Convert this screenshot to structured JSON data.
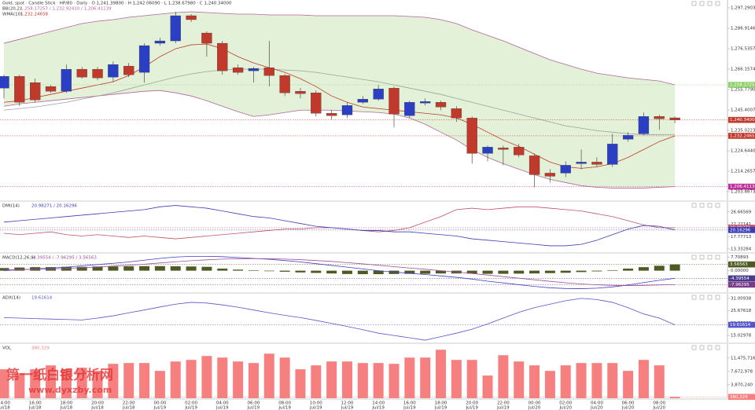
{
  "chart_data": [
    {
      "type": "candlestick",
      "title": "Gold, spot · Candle Stick · HP/80 · Daily · O 1,241.39800 · H 1,242.06090 · L 1,238.67980 · C 1,240.34000",
      "categories": [
        "14:00",
        null,
        "16:00",
        null,
        "18:00",
        null,
        "20:00",
        null,
        "22:00",
        null,
        "00:00",
        null,
        "02:00",
        null,
        "04:00",
        null,
        "06:00",
        null,
        "08:00",
        null,
        "10:00",
        null,
        "12:00",
        null,
        "14:00",
        null,
        "16:00",
        null,
        "18:00",
        null,
        "20:00",
        null,
        "22:00",
        null,
        "00:00",
        null,
        "02:00",
        null,
        "04:00",
        null,
        "06:00",
        null,
        "08:00",
        null
      ],
      "dates": [
        "Jul/18",
        null,
        "Jul/18",
        null,
        "Jul/18",
        null,
        "Jul/18",
        null,
        "Jul/18",
        null,
        "Jul/19",
        null,
        "Jul/19",
        null,
        "Jul/19",
        null,
        "Jul/19",
        null,
        "Jul/19",
        null,
        "Jul/19",
        null,
        "Jul/19",
        null,
        "Jul/19",
        null,
        "Jul/19",
        null,
        "Jul/19",
        null,
        "Jul/19",
        null,
        "Jul/19",
        null,
        "Jul/20",
        null,
        "Jul/20",
        null,
        "Jul/20",
        null,
        "Jul/20",
        null,
        "Jul/20",
        null
      ],
      "open": [
        1256.5,
        1262.5,
        1259.3,
        1257.3,
        1254.9,
        1266.1,
        1266.1,
        1262.1,
        1267.7,
        1264.5,
        1279.3,
        1280.5,
        1293.3,
        1284.5,
        1279.3,
        1266.9,
        1265.3,
        1266.9,
        1262.9,
        1254.9,
        1254.1,
        1243.7,
        1242.9,
        1249.3,
        1250.9,
        1256.5,
        1242.5,
        1248.9,
        1249.3,
        1246.1,
        1241.3,
        1223.3,
        1226.1,
        1226.5,
        1222.1,
        1213.3,
        1213.3,
        1218.1,
        1218.9,
        1217.7,
        1230.5,
        1233.3,
        1242.1,
        1241.398
      ],
      "high": [
        1263.3,
        1263.3,
        1261.3,
        1258.1,
        1268.5,
        1267.3,
        1267.3,
        1270.1,
        1269.3,
        1279.3,
        1282.1,
        1295.3,
        1294.1,
        1285.3,
        1280.5,
        1268.5,
        1267.3,
        1280.5,
        1263.7,
        1256.5,
        1255.3,
        1245.3,
        1249.3,
        1252.5,
        1258.1,
        1257.3,
        1250.1,
        1251.3,
        1250.1,
        1247.3,
        1242.1,
        1227.3,
        1227.3,
        1228.1,
        1223.3,
        1215.3,
        1219.3,
        1225.3,
        1221.3,
        1233.3,
        1234.1,
        1244.1,
        1242.9,
        1242.0609
      ],
      "low": [
        1251.3,
        1247.3,
        1249.3,
        1254.1,
        1254.1,
        1261.3,
        1260.5,
        1259.7,
        1262.1,
        1259.3,
        1278.1,
        1279.3,
        1290.1,
        1272.5,
        1263.3,
        1263.3,
        1259.3,
        1257.3,
        1252.5,
        1251.3,
        1242.1,
        1240.5,
        1241.3,
        1248.5,
        1250.1,
        1236.5,
        1241.3,
        1247.7,
        1245.3,
        1239.3,
        1218.1,
        1219.3,
        1217.3,
        1221.3,
        1206.1,
        1208.5,
        1211.3,
        1215.3,
        1216.5,
        1216.5,
        1229.3,
        1232.5,
        1235.3,
        1238.6798
      ],
      "close": [
        1262.5,
        1249.3,
        1250.5,
        1254.9,
        1266.1,
        1262.1,
        1261.7,
        1268.5,
        1263.3,
        1278.1,
        1280.5,
        1293.3,
        1291.3,
        1279.3,
        1265.3,
        1264.5,
        1266.5,
        1262.9,
        1254.1,
        1253.7,
        1243.7,
        1242.5,
        1247.7,
        1250.9,
        1256.1,
        1243.3,
        1249.3,
        1249.7,
        1246.9,
        1241.3,
        1223.3,
        1226.5,
        1225.3,
        1222.5,
        1212.5,
        1211.7,
        1217.3,
        1218.9,
        1217.7,
        1228.1,
        1232.5,
        1242.1,
        1240.9,
        1240.34
      ],
      "up_color": "#2b3fc4",
      "down_color": "#c0392b",
      "bands": {
        "label": "BB(20,2)",
        "values_text": "1,258.17257 / 1,232.92410 / 1,206.41139",
        "color": "#b5649a",
        "middle_color": "#9aa39a",
        "fill": "#e3f1d9",
        "upper": [
          1279.3,
          1281.3,
          1283.3,
          1285.3,
          1287.3,
          1289.3,
          1290.5,
          1291.3,
          1292.5,
          1293.3,
          1294.1,
          1294.9,
          1295.3,
          1294.9,
          1294.5,
          1294.1,
          1294.1,
          1293.7,
          1293.7,
          1293.7,
          1293.3,
          1293.3,
          1293.3,
          1293.3,
          1293.3,
          1293.3,
          1292.9,
          1292.5,
          1291.3,
          1289.3,
          1286.1,
          1283.3,
          1280.5,
          1277.3,
          1274.1,
          1270.9,
          1268.5,
          1266.1,
          1264.1,
          1262.9,
          1261.7,
          1260.9,
          1260.1,
          1258.17257
        ],
        "middle": [
          1245.3,
          1246.1,
          1246.9,
          1248.1,
          1249.3,
          1250.9,
          1252.5,
          1254.1,
          1256.1,
          1258.1,
          1260.1,
          1262.1,
          1263.7,
          1264.9,
          1265.7,
          1266.1,
          1266.1,
          1266.1,
          1265.7,
          1265.3,
          1264.5,
          1263.3,
          1262.1,
          1260.9,
          1259.7,
          1258.1,
          1256.5,
          1254.9,
          1253.3,
          1251.3,
          1249.3,
          1247.3,
          1245.3,
          1243.3,
          1241.3,
          1239.3,
          1237.3,
          1236.1,
          1234.9,
          1234.1,
          1233.3,
          1232.9,
          1232.9,
          1232.9241
        ],
        "lower": [
          1247.3,
          1248.5,
          1249.3,
          1250.1,
          1250.9,
          1251.7,
          1252.5,
          1253.3,
          1254.1,
          1254.9,
          1255.3,
          1254.1,
          1252.5,
          1250.1,
          1247.3,
          1244.5,
          1242.1,
          1242.9,
          1244.1,
          1245.3,
          1245.3,
          1245.3,
          1244.9,
          1244.5,
          1244.1,
          1243.3,
          1241.3,
          1238.1,
          1234.1,
          1230.1,
          1225.3,
          1221.3,
          1218.1,
          1215.3,
          1212.5,
          1210.1,
          1208.5,
          1206.9,
          1206.1,
          1205.7,
          1205.7,
          1205.7,
          1206.1,
          1206.41139
        ]
      },
      "ma": {
        "label": "WMA(10)",
        "values_text": "1,232.24658",
        "color": "#c0392b",
        "values": [
          1249.3,
          1250.1,
          1251.7,
          1253.3,
          1254.9,
          1256.5,
          1258.1,
          1259.7,
          1262.9,
          1267.3,
          1272.5,
          1276.5,
          1278.5,
          1278.9,
          1276.5,
          1272.5,
          1269.3,
          1266.9,
          1264.5,
          1261.3,
          1257.3,
          1252.5,
          1249.3,
          1246.9,
          1246.1,
          1245.3,
          1244.5,
          1243.7,
          1242.9,
          1241.3,
          1238.1,
          1234.1,
          1230.1,
          1226.9,
          1222.9,
          1218.9,
          1216.5,
          1215.7,
          1216.5,
          1218.1,
          1221.3,
          1225.3,
          1229.3,
          1232.24658
        ]
      },
      "ylim": [
        1199.49,
        1301.28
      ],
      "yticks": [
        {
          "value": 1297.29032,
          "label": "1,297.29032"
        },
        {
          "value": 1286.91468,
          "label": "1,286.91468"
        },
        {
          "value": 1276.53574,
          "label": "1,276.53574"
        },
        {
          "value": 1266.15748,
          "label": "1,266.15748"
        },
        {
          "value": 1255.77906,
          "label": "1,255.77906"
        },
        {
          "value": 1245.40072,
          "label": "1,245.40072"
        },
        {
          "value": 1235.02238,
          "label": "1,235.02238"
        },
        {
          "value": 1224.64404,
          "label": "1,224.64404"
        },
        {
          "value": 1214.26571,
          "label": "1,214.26571"
        },
        {
          "value": 1203.88737,
          "label": "1,203.88737"
        }
      ],
      "tags": [
        {
          "value": 1258.17257,
          "label": "1,258.17257",
          "color": "#8fd16a"
        },
        {
          "value": 1240.34,
          "label": "1,240.34000",
          "color": "#c0392b"
        },
        {
          "value": 1232.24658,
          "label": "1,232.24658",
          "color": "#c0392b"
        },
        {
          "value": 1206.41139,
          "label": "1,206.41139",
          "color": "#c02e9b"
        }
      ]
    },
    {
      "type": "line",
      "label": "DMI(14)",
      "values_text": "20.98271 / 20.16296",
      "series": [
        {
          "color": "#c0506a",
          "values": [
            19,
            18.5,
            19,
            19.5,
            18.5,
            18,
            18.5,
            18,
            17.5,
            18,
            17.5,
            17,
            17.5,
            18,
            18.5,
            19,
            19.5,
            20,
            20.5,
            20.5,
            21,
            21,
            20.5,
            20,
            19.5,
            20,
            21,
            23,
            25,
            27.5,
            28,
            27.5,
            28,
            28.5,
            28.5,
            28,
            27.5,
            27,
            26,
            25,
            23.5,
            22,
            21,
            20.98271
          ]
        },
        {
          "color": "#3b3bb8",
          "values": [
            23,
            23.5,
            24,
            24.5,
            25,
            25.5,
            26,
            26.5,
            27,
            27.5,
            28.5,
            29,
            28.5,
            28,
            27,
            26,
            25,
            24.5,
            23.5,
            22.5,
            21.5,
            21,
            20.5,
            20,
            20,
            19.5,
            19.5,
            19,
            18.5,
            18,
            17,
            16.5,
            16,
            15.5,
            15,
            14.5,
            14.5,
            15,
            16.5,
            18.5,
            20.5,
            21.8,
            21.5,
            20.16296
          ]
        }
      ],
      "ylim": [
        12.22,
        30.28
      ],
      "yticks": [
        13.33284,
        17.77713,
        22.22141,
        26.66569
      ],
      "tags": [
        {
          "value": 20.98271,
          "label": "20.98271",
          "color": "#c0506a"
        },
        {
          "value": 20.16296,
          "label": "20.16296",
          "color": "#3b3bb8"
        }
      ]
    },
    {
      "type": "combo",
      "label": "MACD(12,26,9)",
      "values_text": "-4.39554 / -7.96295 / 3.56563",
      "series": [
        {
          "kind": "bar",
          "color": "#4d5b22",
          "values": [
            1.5,
            1.8,
            2,
            2,
            2.2,
            2.2,
            2.4,
            2.4,
            2.5,
            2.6,
            2.6,
            2.5,
            2.4,
            2.2,
            1.2,
            0.6,
            0.3,
            -0.3,
            -0.6,
            -1,
            -1.3,
            -1.6,
            -1.9,
            -2,
            -2,
            -1.9,
            -1.8,
            -1.8,
            -1.6,
            -1.6,
            -1.7,
            -1.8,
            -1.8,
            -1.7,
            -1.6,
            -1.4,
            -1.2,
            -0.8,
            -0.4,
            0.3,
            1.2,
            2,
            2.8,
            3.56563
          ]
        },
        {
          "kind": "line",
          "color": "#4040c0",
          "values": [
            0,
            0.5,
            1,
            1.5,
            2,
            2.8,
            3.5,
            4.2,
            5,
            6,
            7,
            7.8,
            8.2,
            8.2,
            8,
            7.5,
            7,
            6.5,
            5.8,
            5,
            4,
            3,
            2,
            1,
            0,
            -0.8,
            -1.5,
            -2.2,
            -3,
            -3.8,
            -4.8,
            -6,
            -7,
            -8,
            -9,
            -9.8,
            -10.2,
            -10.3,
            -10,
            -9.3,
            -8.2,
            -6.8,
            -5.5,
            -4.39554
          ]
        },
        {
          "kind": "line",
          "color": "#a0509a",
          "values": [
            0.5,
            0.6,
            0.8,
            1,
            1.3,
            1.7,
            2.1,
            2.6,
            3.1,
            3.7,
            4.4,
            5.1,
            5.7,
            6.2,
            6.6,
            6.8,
            6.9,
            6.8,
            6.6,
            6.3,
            5.8,
            5.3,
            4.6,
            3.9,
            3.1,
            2.3,
            1.5,
            0.8,
            0,
            -0.8,
            -1.6,
            -2.5,
            -3.4,
            -4.3,
            -5.2,
            -6.1,
            -6.9,
            -7.6,
            -8.1,
            -8.4,
            -8.5,
            -8.4,
            -8.2,
            -7.96295
          ]
        }
      ],
      "ylim": [
        -12.3,
        9.7
      ],
      "yticks": [
        7.70893,
        {
          "value": 0,
          "label": "0.00000"
        }
      ],
      "tags": [
        {
          "value": 3.56563,
          "label": "3.56563",
          "color": "#4d5b22"
        },
        {
          "value": -4.39554,
          "label": "-4.39554",
          "color": "#4a3a8a"
        },
        {
          "value": -7.96295,
          "label": "-7.96295",
          "color": "#7a3a8a"
        }
      ]
    },
    {
      "type": "line",
      "label": "ADX(14)",
      "values_text": "19.61614",
      "series": [
        {
          "color": "#5555cc",
          "values": [
            22.7,
            22.5,
            22.3,
            22.1,
            21.9,
            21.7,
            22.5,
            23.5,
            24.8,
            26,
            27.3,
            28.5,
            29.3,
            29,
            28.2,
            27.2,
            26,
            24.8,
            23.7,
            22.7,
            21.5,
            20.2,
            18.9,
            17.5,
            16,
            15,
            14,
            13,
            14.5,
            16,
            17.7,
            20,
            22.5,
            25,
            27,
            28.5,
            30,
            31,
            30.5,
            29.3,
            27,
            24.3,
            22.5,
            19.61614
          ]
        }
      ],
      "ylim": [
        12,
        33
      ],
      "yticks": [
        15.02978,
        20.35298,
        25.67618,
        31.00938
      ],
      "tags": [
        {
          "value": 19.61614,
          "label": "19.61614",
          "color": "#5555cc"
        }
      ]
    },
    {
      "type": "bar",
      "label": "VOL",
      "values_text": "380,329",
      "color": "#f67f7f",
      "values": [
        8280000,
        7160000,
        8280000,
        9400000,
        8280000,
        8720000,
        7830000,
        9840000,
        10070000,
        10070000,
        7830000,
        10510000,
        10960000,
        12080000,
        11630000,
        10510000,
        10070000,
        12750000,
        11630000,
        8280000,
        9400000,
        10510000,
        10510000,
        10070000,
        10070000,
        9840000,
        11630000,
        11630000,
        13870000,
        10960000,
        10960000,
        6490000,
        12300000,
        10510000,
        9400000,
        7830000,
        9400000,
        10070000,
        10070000,
        10070000,
        7830000,
        10960000,
        9400000,
        380329
      ],
      "ylim": [
        0,
        15502136
      ],
      "yticks": [
        {
          "value": 3870240,
          "label": "3,870,240"
        },
        {
          "value": 7672978,
          "label": "7,672,978"
        },
        {
          "value": 11475716,
          "label": "11,475,716"
        }
      ],
      "tags": [
        {
          "value": 380329,
          "label": "380,329",
          "color": "#f67f7f"
        }
      ]
    }
  ],
  "watermark": {
    "text": "第一纸白银分析网",
    "url": "www.dyxzby.com"
  }
}
